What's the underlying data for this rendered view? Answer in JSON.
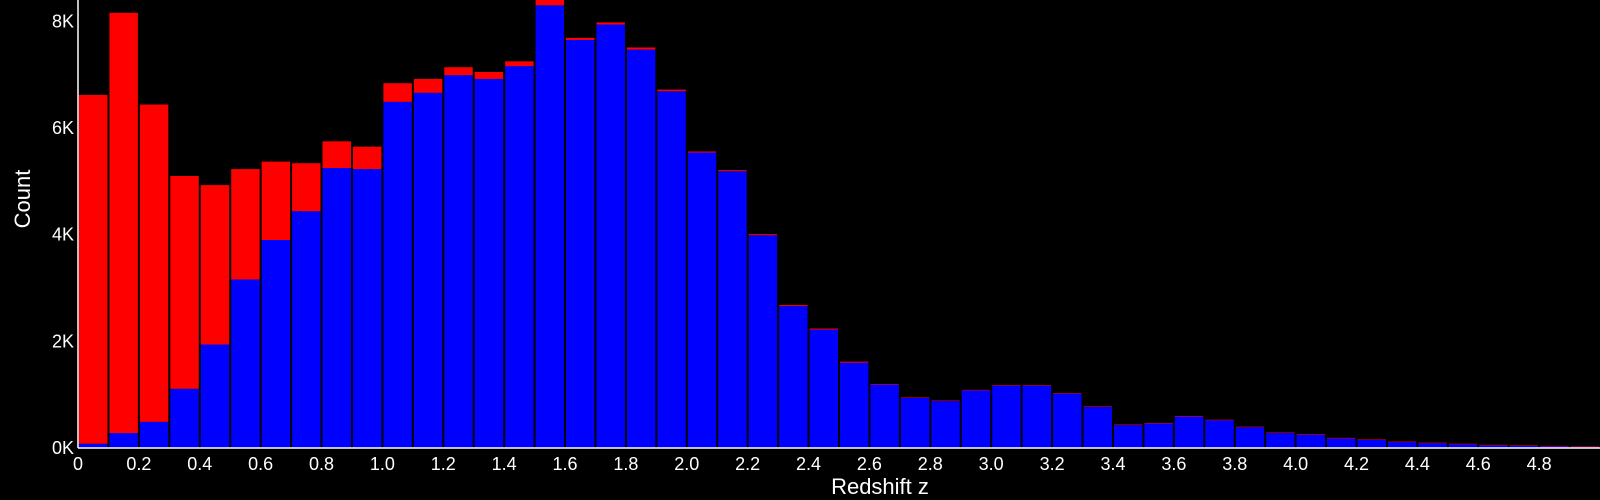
{
  "chart_data": {
    "type": "bar",
    "stacked": true,
    "xlabel": "Redshift z",
    "ylabel": "Count",
    "xlim": [
      0,
      5.0
    ],
    "ylim": [
      0,
      8400
    ],
    "bin_width": 0.1,
    "x_ticks": [
      {
        "value": 0,
        "label": "0"
      },
      {
        "value": 0.2,
        "label": "0.2"
      },
      {
        "value": 0.4,
        "label": "0.4"
      },
      {
        "value": 0.6,
        "label": "0.6"
      },
      {
        "value": 0.8,
        "label": "0.8"
      },
      {
        "value": 1.0,
        "label": "1.0"
      },
      {
        "value": 1.2,
        "label": "1.2"
      },
      {
        "value": 1.4,
        "label": "1.4"
      },
      {
        "value": 1.6,
        "label": "1.6"
      },
      {
        "value": 1.8,
        "label": "1.8"
      },
      {
        "value": 2.0,
        "label": "2.0"
      },
      {
        "value": 2.2,
        "label": "2.2"
      },
      {
        "value": 2.4,
        "label": "2.4"
      },
      {
        "value": 2.6,
        "label": "2.6"
      },
      {
        "value": 2.8,
        "label": "2.8"
      },
      {
        "value": 3.0,
        "label": "3.0"
      },
      {
        "value": 3.2,
        "label": "3.2"
      },
      {
        "value": 3.4,
        "label": "3.4"
      },
      {
        "value": 3.6,
        "label": "3.6"
      },
      {
        "value": 3.8,
        "label": "3.8"
      },
      {
        "value": 4.0,
        "label": "4.0"
      },
      {
        "value": 4.2,
        "label": "4.2"
      },
      {
        "value": 4.4,
        "label": "4.4"
      },
      {
        "value": 4.6,
        "label": "4.6"
      },
      {
        "value": 4.8,
        "label": "4.8"
      }
    ],
    "y_ticks": [
      {
        "value": 0,
        "label": "0K"
      },
      {
        "value": 2000,
        "label": "2K"
      },
      {
        "value": 4000,
        "label": "4K"
      },
      {
        "value": 6000,
        "label": "6K"
      },
      {
        "value": 8000,
        "label": "8K"
      }
    ],
    "bin_starts": [
      0.0,
      0.1,
      0.2,
      0.3,
      0.4,
      0.5,
      0.6,
      0.7,
      0.8,
      0.9,
      1.0,
      1.1,
      1.2,
      1.3,
      1.4,
      1.5,
      1.6,
      1.7,
      1.8,
      1.9,
      2.0,
      2.1,
      2.2,
      2.3,
      2.4,
      2.5,
      2.6,
      2.7,
      2.8,
      2.9,
      3.0,
      3.1,
      3.2,
      3.3,
      3.4,
      3.5,
      3.6,
      3.7,
      3.8,
      3.9,
      4.0,
      4.1,
      4.2,
      4.3,
      4.4,
      4.5,
      4.6,
      4.7,
      4.8,
      4.9
    ],
    "series": [
      {
        "color": "#0000ff",
        "values": [
          80,
          280,
          490,
          1110,
          1940,
          3160,
          3900,
          4440,
          5250,
          5230,
          6490,
          6660,
          6990,
          6920,
          7160,
          8300,
          7650,
          7940,
          7470,
          6690,
          5540,
          5190,
          3990,
          2660,
          2220,
          1600,
          1190,
          940,
          880,
          1080,
          1170,
          1170,
          1020,
          770,
          430,
          460,
          590,
          520,
          390,
          280,
          250,
          180,
          150,
          110,
          90,
          70,
          50,
          40,
          30,
          20
        ]
      },
      {
        "color": "#ff0000",
        "values": [
          6540,
          7880,
          5950,
          3990,
          2990,
          2070,
          1470,
          900,
          500,
          420,
          350,
          260,
          150,
          130,
          90,
          100,
          40,
          40,
          40,
          30,
          20,
          20,
          20,
          20,
          20,
          20,
          10,
          10,
          10,
          10,
          10,
          10,
          10,
          10,
          10,
          10,
          10,
          10,
          10,
          10,
          10,
          10,
          10,
          10,
          10,
          10,
          10,
          10,
          10,
          10
        ]
      }
    ]
  }
}
